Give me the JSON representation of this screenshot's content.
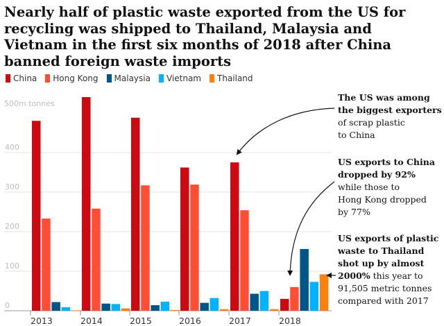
{
  "chart_data": {
    "type": "bar",
    "title": "Nearly half of plastic waste exported from the US for recycling was shipped to Thailand, Malaysia and Vietnam in the first six months of 2018 after China banned foreign waste imports",
    "ylabel": "500m tonnes",
    "xlabel": "",
    "ylim": [
      0,
      540
    ],
    "yticks": [
      0,
      100,
      200,
      300,
      400
    ],
    "grid": true,
    "legend_position": "top-left",
    "categories": [
      "2013",
      "2014",
      "2015",
      "2016",
      "2017",
      "2018"
    ],
    "series": [
      {
        "name": "China",
        "color": "#cc0a11",
        "values": [
          480,
          540,
          488,
          362,
          375,
          30
        ]
      },
      {
        "name": "Hong Kong",
        "color": "#ff4e36",
        "values": [
          233,
          258,
          317,
          319,
          254,
          60
        ]
      },
      {
        "name": "Malaysia",
        "color": "#005689",
        "values": [
          22,
          18,
          14,
          20,
          43,
          156
        ]
      },
      {
        "name": "Vietnam",
        "color": "#00b2ff",
        "values": [
          9,
          17,
          23,
          32,
          50,
          73
        ]
      },
      {
        "name": "Thailand",
        "color": "#ff7f0f",
        "values": [
          1,
          6,
          2,
          4,
          4,
          92
        ]
      }
    ],
    "annotations": [
      {
        "bold": "The US was among\nthe biggest exporters",
        "text": "of scrap plastic\nto China"
      },
      {
        "bold": "US exports to China\ndropped by 92%",
        "text": "while those to\nHong Kong dropped\nby 77%"
      },
      {
        "bold": "US exports of plastic\nwaste to Thailand\nshot up by almost\n2000%",
        "text": " this year to\n91,505 metric tonnes\ncompared with 2017"
      }
    ]
  }
}
